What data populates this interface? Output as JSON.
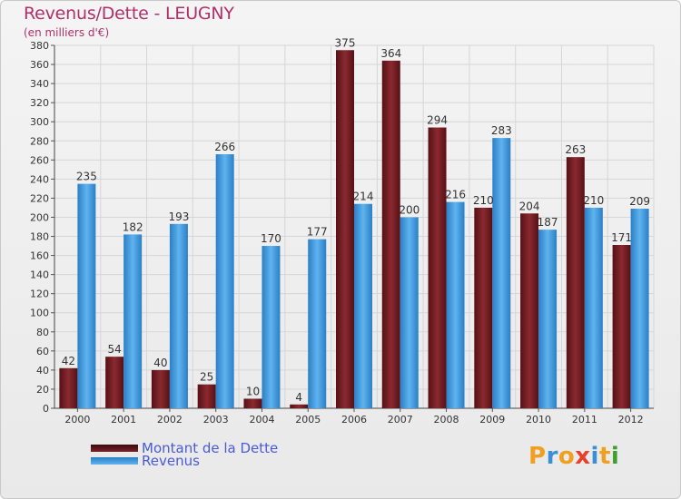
{
  "title": "Revenus/Dette - LEUGNY",
  "subtitle": "(en milliers d'€)",
  "colors": {
    "series1": "#6e1a1f",
    "series2": "#3a95dc",
    "title": "#b0306a",
    "legend_text": "#4a5ad8"
  },
  "logo": {
    "letters": [
      "P",
      "r",
      "o",
      "x",
      "i",
      "t",
      "i"
    ],
    "colors": [
      "#f0a020",
      "#3a8fd6",
      "#f0a020",
      "#e8402a",
      "#3a8fd6",
      "#f0a020",
      "#3aa030"
    ]
  },
  "chart_data": {
    "type": "bar",
    "title": "Revenus/Dette - LEUGNY",
    "subtitle": "(en milliers d'€)",
    "categories": [
      "2000",
      "2001",
      "2002",
      "2003",
      "2004",
      "2005",
      "2006",
      "2007",
      "2008",
      "2009",
      "2010",
      "2011",
      "2012"
    ],
    "series": [
      {
        "name": "Montant de la Dette",
        "values": [
          42,
          54,
          40,
          25,
          10,
          4,
          375,
          364,
          294,
          210,
          204,
          263,
          171
        ]
      },
      {
        "name": "Revenus",
        "values": [
          235,
          182,
          193,
          266,
          170,
          177,
          214,
          200,
          216,
          283,
          187,
          210,
          209
        ]
      }
    ],
    "ylim": [
      0,
      380
    ],
    "ytick_step": 20,
    "yticks": [
      "0",
      "20",
      "40",
      "60",
      "80",
      "100",
      "120",
      "140",
      "160",
      "180",
      "200",
      "220",
      "240",
      "260",
      "280",
      "300",
      "320",
      "340",
      "360",
      "380"
    ],
    "grid": true,
    "legend_position": "bottom-left"
  }
}
